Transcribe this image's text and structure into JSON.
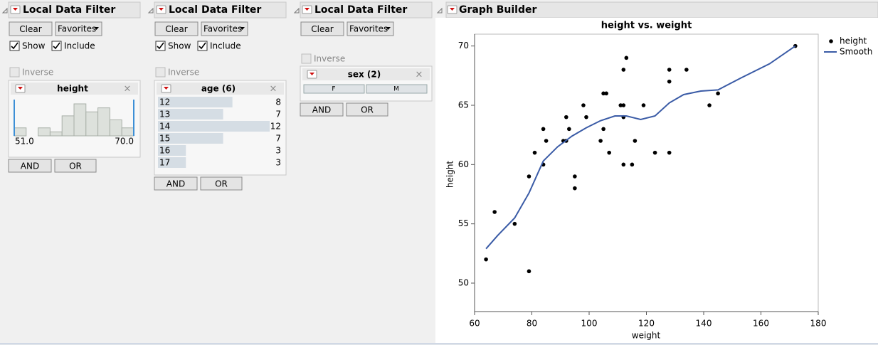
{
  "filters": [
    {
      "title": "Local Data Filter",
      "clear": "Clear",
      "favorites": "Favorites",
      "show": "Show",
      "include": "Include",
      "inverse": "Inverse",
      "panel": {
        "title": "height",
        "min_label": "51.0",
        "max_label": "70.0",
        "histogram": [
          2,
          0,
          2,
          1,
          5,
          8,
          6,
          7,
          4,
          2
        ]
      },
      "and": "AND",
      "or": "OR"
    },
    {
      "title": "Local Data Filter",
      "clear": "Clear",
      "favorites": "Favorites",
      "show": "Show",
      "include": "Include",
      "inverse": "Inverse",
      "panel": {
        "title": "age (6)",
        "levels": [
          "12",
          "13",
          "14",
          "15",
          "16",
          "17"
        ],
        "counts": [
          8,
          7,
          12,
          7,
          3,
          3
        ]
      },
      "and": "AND",
      "or": "OR"
    },
    {
      "title": "Local Data Filter",
      "clear": "Clear",
      "favorites": "Favorites",
      "inverse": "Inverse",
      "panel": {
        "title": "sex (2)",
        "levels": [
          "F",
          "M"
        ]
      },
      "and": "AND",
      "or": "OR"
    }
  ],
  "graph_builder": {
    "title": "Graph Builder"
  },
  "chart_data": {
    "type": "scatter",
    "title": "height vs. weight",
    "x_label": "weight",
    "y_label": "height",
    "xlim": [
      60,
      180
    ],
    "xticks": [
      60,
      80,
      100,
      120,
      140,
      160,
      180
    ],
    "ylim": [
      47.6,
      71
    ],
    "yticks": [
      50,
      55,
      60,
      65,
      70
    ],
    "series": [
      {
        "name": "height",
        "kind": "points",
        "color": "#000000",
        "x": [
          64,
          67,
          74,
          79,
          79,
          81,
          84,
          84,
          85,
          91,
          92,
          92,
          93,
          95,
          95,
          98,
          99,
          104,
          105,
          105,
          106,
          107,
          111,
          112,
          112,
          112,
          112,
          113,
          115,
          116,
          119,
          123,
          128,
          128,
          128,
          134,
          142,
          145,
          172
        ],
        "values": [
          52,
          56,
          55,
          51,
          59,
          61,
          63,
          60,
          62,
          62,
          64,
          62,
          63,
          59,
          58,
          65,
          64,
          62,
          66,
          63,
          66,
          61,
          65,
          68,
          65,
          64,
          60,
          69,
          60,
          62,
          65,
          61,
          68,
          67,
          61,
          68,
          65,
          66,
          70
        ]
      },
      {
        "name": "Smooth",
        "kind": "line",
        "color": "#3a5ba6",
        "x": [
          64,
          68,
          74,
          79,
          84,
          89,
          94,
          99,
          104,
          109,
          113,
          118,
          123,
          128,
          133,
          139,
          145,
          153,
          163,
          172
        ],
        "values": [
          52.9,
          54.0,
          55.5,
          57.6,
          60.3,
          61.5,
          62.4,
          63.1,
          63.7,
          64.1,
          64.1,
          63.8,
          64.1,
          65.2,
          65.9,
          66.2,
          66.3,
          67.3,
          68.5,
          70.0
        ]
      }
    ]
  }
}
